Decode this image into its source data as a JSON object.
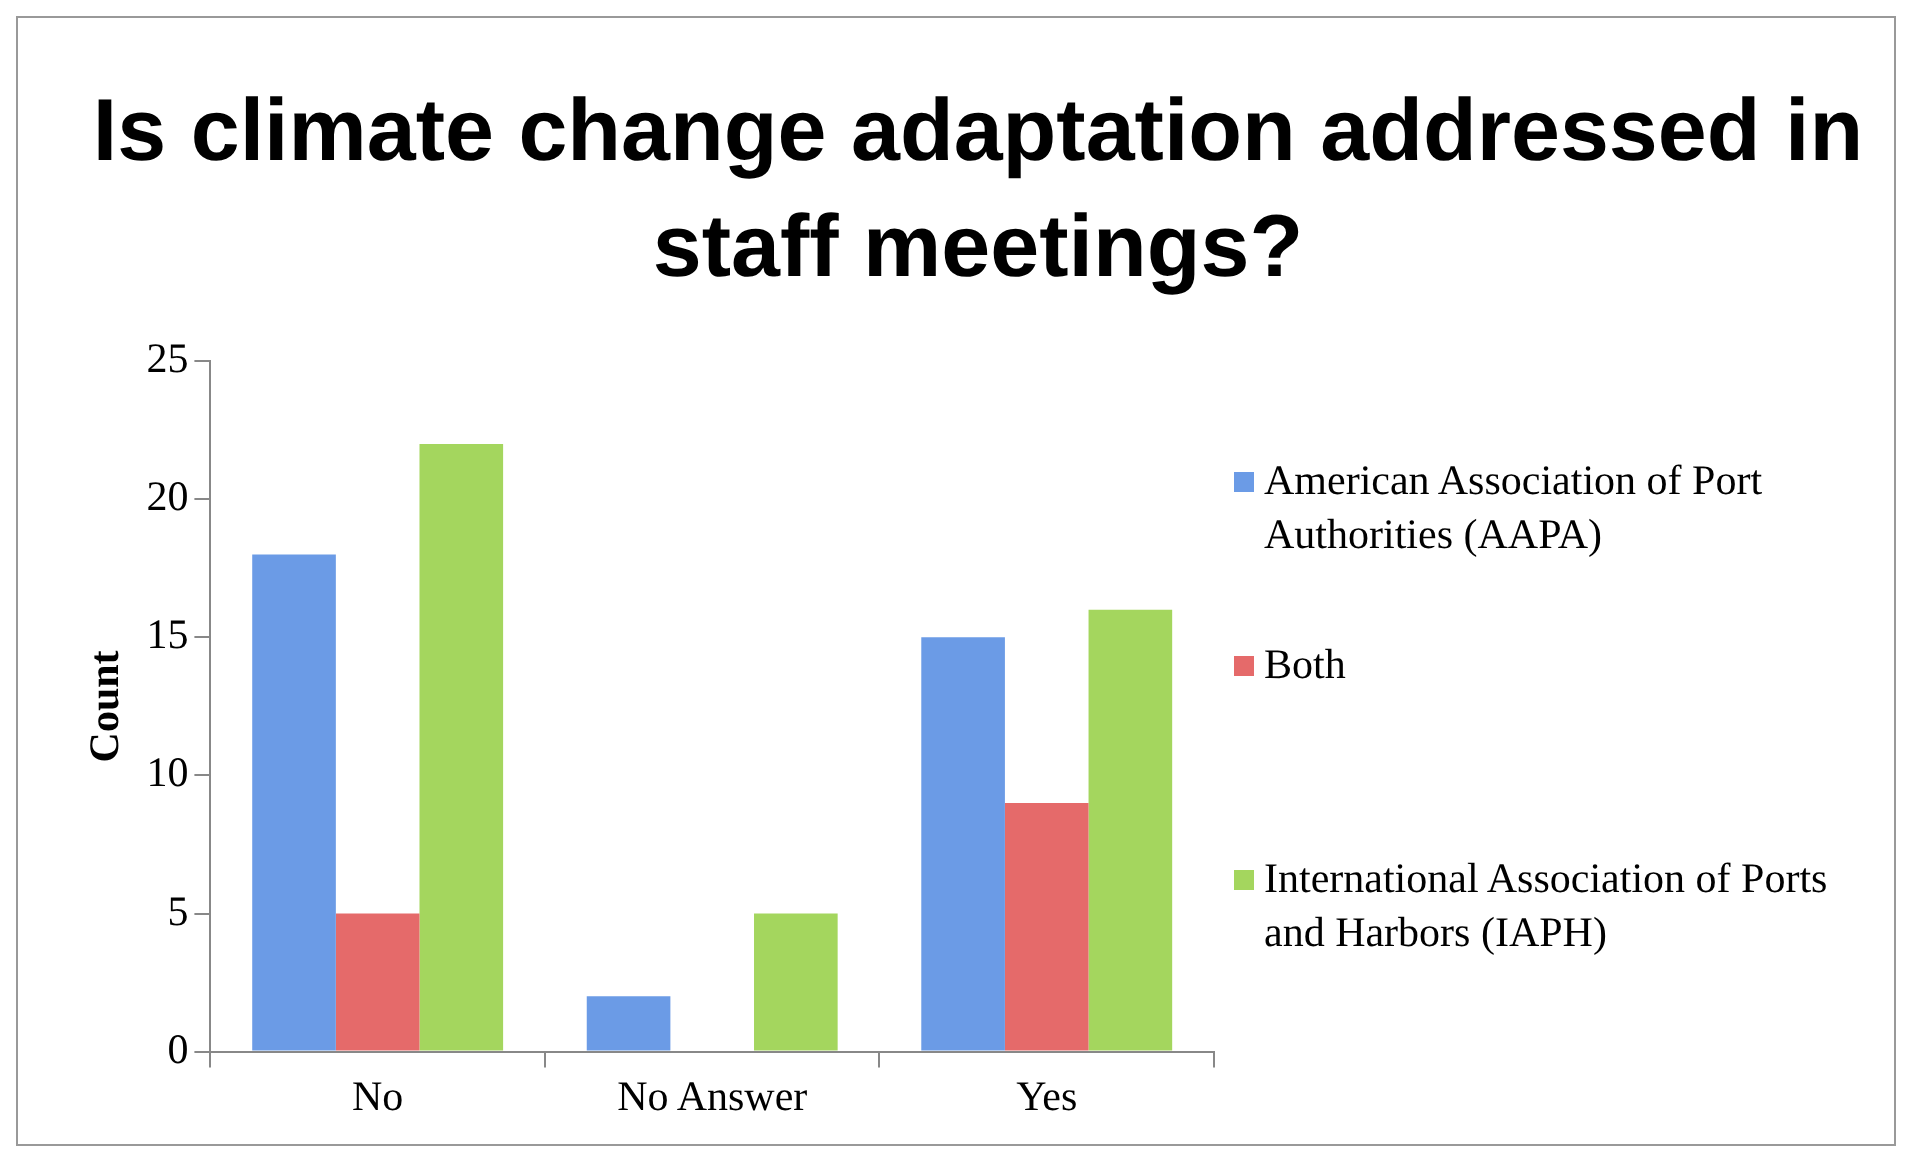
{
  "chart_data": {
    "type": "bar",
    "title": "Is climate change adaptation addressed in staff meetings?",
    "ylabel": "Count",
    "categories": [
      "No",
      "No Answer",
      "Yes"
    ],
    "series": [
      {
        "name": "American Association of Port Authorities (AAPA)",
        "color": "#6b9be6",
        "values": [
          18,
          2,
          15
        ]
      },
      {
        "name": "Both",
        "color": "#e56a6a",
        "values": [
          5,
          0,
          9
        ]
      },
      {
        "name": "International Association of Ports and Harbors (IAPH)",
        "color": "#a4d65e",
        "values": [
          22,
          5,
          16
        ]
      }
    ],
    "ylim": [
      0,
      25
    ],
    "yticks": [
      0,
      5,
      10,
      15,
      20,
      25
    ],
    "grid": false,
    "legend": "right"
  }
}
